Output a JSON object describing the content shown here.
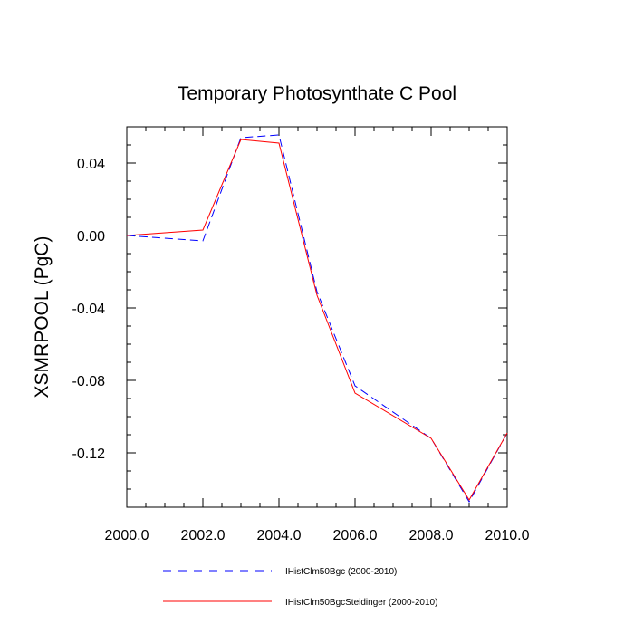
{
  "chart_data": {
    "type": "line",
    "title": "Temporary Photosynthate C Pool",
    "xlabel": "",
    "ylabel": "XSMRPOOL  (PgC)",
    "xlim": [
      2000,
      2010
    ],
    "ylim": [
      -0.15,
      0.06
    ],
    "x_ticks": [
      2000,
      2002,
      2004,
      2006,
      2008,
      2010
    ],
    "x_tick_labels": [
      "2000.0",
      "2002.0",
      "2004.0",
      "2006.0",
      "2008.0",
      "2010.0"
    ],
    "y_ticks": [
      0.04,
      0.0,
      -0.04,
      -0.08,
      -0.12
    ],
    "y_tick_labels": [
      "0.04",
      "0.00",
      "-0.04",
      "-0.08",
      "-0.12"
    ],
    "grid": false,
    "legend_position": "bottom",
    "series": [
      {
        "name": "IHistClm50Bgc (2000-2010)",
        "color": "#0000ff",
        "dash": "dashed",
        "x": [
          2000,
          2002,
          2003,
          2004,
          2005,
          2006,
          2008,
          2009,
          2010
        ],
        "y": [
          0.0,
          -0.003,
          0.054,
          0.0555,
          -0.031,
          -0.083,
          -0.112,
          -0.147,
          -0.109
        ]
      },
      {
        "name": "IHistClm50BgcSteidinger (2000-2010)",
        "color": "#ff0000",
        "dash": "solid",
        "x": [
          2000,
          2002,
          2003,
          2004,
          2005,
          2006,
          2008,
          2009,
          2010
        ],
        "y": [
          0.0,
          0.003,
          0.053,
          0.051,
          -0.033,
          -0.087,
          -0.112,
          -0.146,
          -0.109
        ]
      }
    ]
  }
}
